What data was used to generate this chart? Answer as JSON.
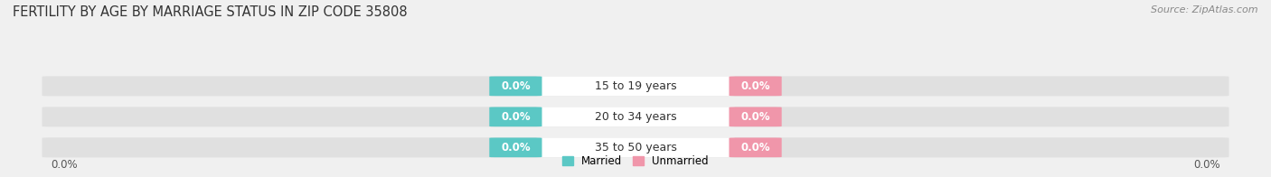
{
  "title": "FERTILITY BY AGE BY MARRIAGE STATUS IN ZIP CODE 35808",
  "source": "Source: ZipAtlas.com",
  "categories": [
    "15 to 19 years",
    "20 to 34 years",
    "35 to 50 years"
  ],
  "married_values": [
    0.0,
    0.0,
    0.0
  ],
  "unmarried_values": [
    0.0,
    0.0,
    0.0
  ],
  "married_color": "#5bc8c5",
  "unmarried_color": "#f096aa",
  "bar_bg_color": "#e0e0e0",
  "background_color": "#f0f0f0",
  "title_fontsize": 10.5,
  "label_fontsize": 8.5,
  "tick_fontsize": 8.5,
  "source_fontsize": 8,
  "cat_fontsize": 9
}
